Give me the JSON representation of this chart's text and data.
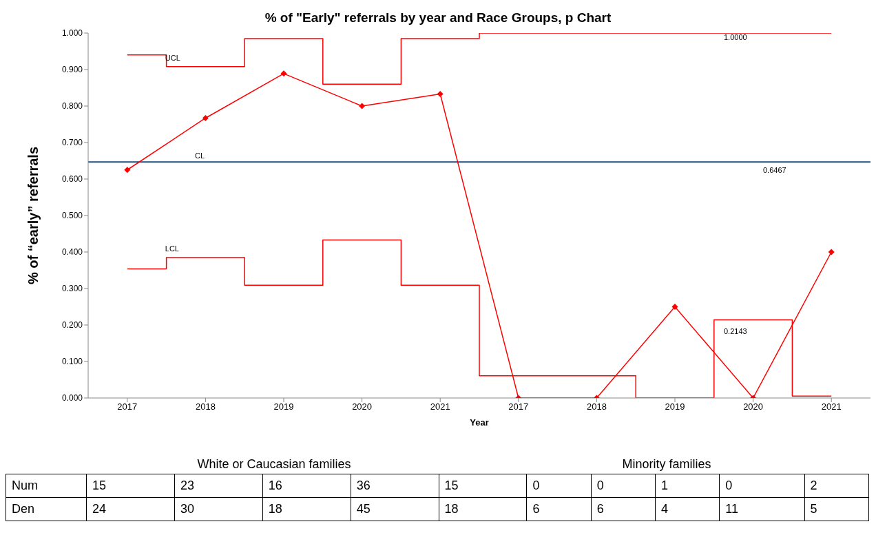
{
  "chart_data": [
    {
      "type": "line",
      "title": "% of \"Early\" referrals by year and Race Groups, p Chart",
      "xlabel": "Year",
      "ylabel": "% of “early” referrals",
      "categories": [
        "2017",
        "2018",
        "2019",
        "2020",
        "2021",
        "2017",
        "2018",
        "2019",
        "2020",
        "2021"
      ],
      "series": [
        {
          "name": "UCL",
          "type": "step",
          "color": "#ff0000",
          "marker": "none",
          "values": [
            0.94,
            0.908,
            0.985,
            0.86,
            0.985,
            1,
            1,
            1,
            1,
            1
          ]
        },
        {
          "name": "LCL",
          "type": "step",
          "color": "#ff0000",
          "marker": "none",
          "values": [
            0.354,
            0.385,
            0.309,
            0.433,
            0.309,
            0.061,
            0.061,
            0,
            0.214,
            0.005
          ]
        },
        {
          "type": "line",
          "color": "#ff0000",
          "marker": "diamond",
          "values": [
            0.625,
            0.767,
            0.889,
            0.8,
            0.833,
            0,
            0,
            0.25,
            0,
            0.4
          ]
        }
      ],
      "ref_lines": [
        {
          "axis": "y",
          "value": 0.6467,
          "label": "CL",
          "color": "#1f4e79"
        }
      ],
      "ylim": [
        0,
        1
      ],
      "yticks": [
        {
          "value": 0,
          "label": "0.000"
        },
        {
          "value": 0.1,
          "label": "0.100"
        },
        {
          "value": 0.2,
          "label": "0.200"
        },
        {
          "value": 0.3,
          "label": "0.300"
        },
        {
          "value": 0.4,
          "label": "0.400"
        },
        {
          "value": 0.5,
          "label": "0.500"
        },
        {
          "value": 0.6,
          "label": "0.600"
        },
        {
          "value": 0.7,
          "label": "0.700"
        },
        {
          "value": 0.8,
          "label": "0.800"
        },
        {
          "value": 0.9,
          "label": "0.900"
        },
        {
          "value": 1,
          "label": "1.000"
        }
      ],
      "grid": false,
      "legend": false,
      "annotations": [
        "1.0000",
        "0.6467",
        "0.2143",
        "White or Caucasian families",
        "Minority families"
      ]
    },
    {
      "type": "other",
      "annotations": [
        "Num",
        "15",
        "23",
        "16",
        "36",
        "15",
        "0",
        "0",
        "1",
        "0",
        "2",
        "Den",
        "24",
        "30",
        "18",
        "45",
        "18",
        "6",
        "6",
        "4",
        "11",
        "5"
      ]
    }
  ]
}
